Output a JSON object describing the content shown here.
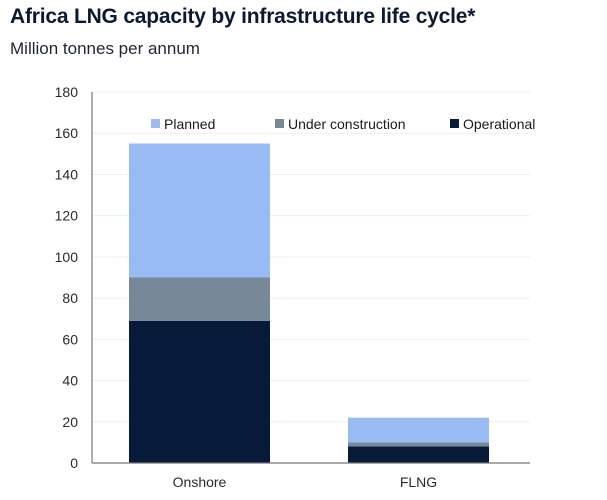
{
  "chart_data": {
    "type": "bar",
    "stacked": true,
    "title": "Africa LNG capacity by infrastructure life cycle*",
    "subtitle": "Million tonnes per annum",
    "xlabel": "",
    "ylabel": "",
    "categories": [
      "Onshore",
      "FLNG"
    ],
    "series": [
      {
        "name": "Operational",
        "color": "#071a3a",
        "values": [
          69,
          8
        ]
      },
      {
        "name": "Under construction",
        "color": "#778899",
        "values": [
          21,
          2
        ]
      },
      {
        "name": "Planned",
        "color": "#99bbf3",
        "values": [
          65,
          12
        ]
      }
    ],
    "legend_order": [
      "Planned",
      "Under construction",
      "Operational"
    ],
    "legend_position": "top",
    "ylim": [
      0,
      180
    ],
    "yticks": [
      0,
      20,
      40,
      60,
      80,
      100,
      120,
      140,
      160,
      180
    ],
    "grid": true
  }
}
